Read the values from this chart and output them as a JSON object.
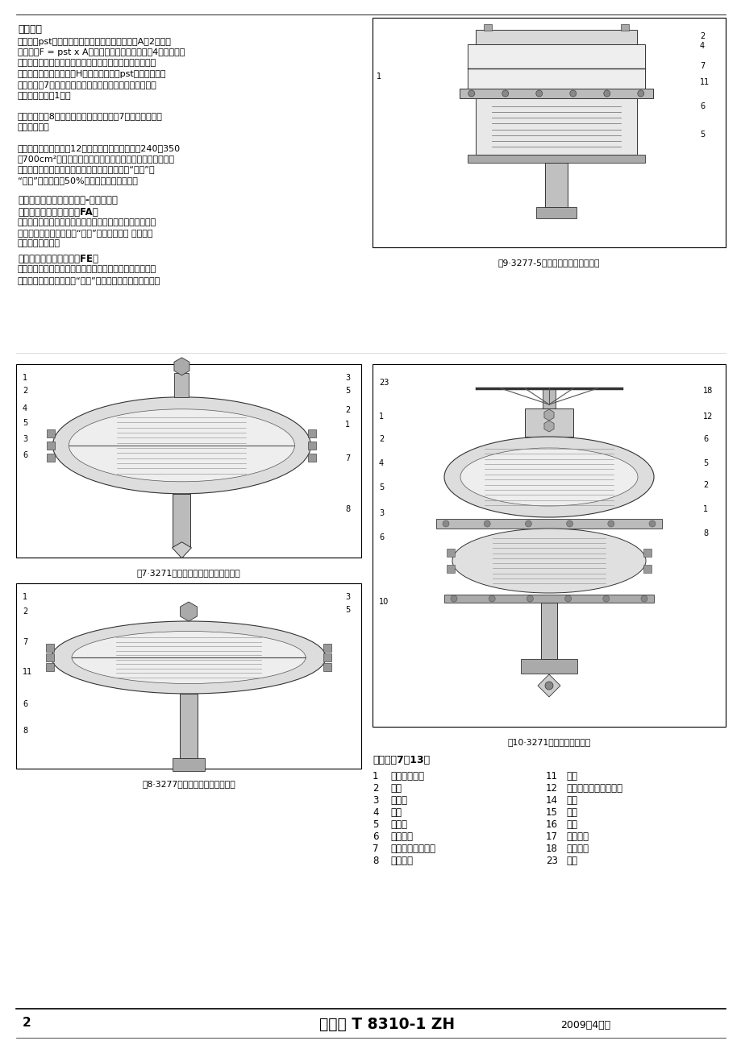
{
  "page_bg": "#ffffff",
  "section1_title": "工作原理",
  "section1_body": [
    "信号压力pst作用在气动执行机构的膜片有效面秭A（2）上，",
    "产生推力F = pst x A。这个力与执行机构弹簧（4）的弹簧力",
    "相平衡。内置弹簧数量及对其预压紧决定着气动执行机构弹",
    "簧范围和额定行程。行程H与所加信号压力pst成正比。执行",
    "机构推杆（7）的动作方向取决于内置弹簧装配位置和信号",
    "压力连接位置（1）。",
    "",
    "用杆连接器（8）可把气动执行机构推杆（7）与控制阀的阀",
    "杆连接起来。",
    "",
    "可调整的机械限位（图12），适用在膜片有效面秭240、350",
    "或700cm²及膜片室为钓板材料的气动执行机构。使用行程限",
    "位，执行机构行程可在两个方向（执行机构推杆“伸出”或",
    "“缩回”）上最大为50%的限制和允许的调整。"
  ],
  "section2_title": "气动执行机构可有下列故障-安全动作：",
  "subsection1_title": "气动执行机构推杆伸出（FA）",
  "subsection1_bold": "气动执行机构推杆伸出（",
  "subsection1_bold2": "FA",
  "subsection1_bold3": "）",
  "subsection1_body": [
    "当作用在膜片上的信号压力减少或气源故障，膜片室内的弹",
    "簧力使气动执行机构推杆“伸出”到最下端位置 （参见剥",
    "面图的右半部）。"
  ],
  "subsection2_title": "气动执行机构推杆缩回（FE）",
  "subsection2_bold": "气动执行机构推杆缩回（",
  "subsection2_bold2": "FE",
  "subsection2_bold3": "）",
  "subsection2_body": [
    "当作用在膜片上的信号压力减少或气源故障，膜片室内的弹",
    "簧力使气动执行机构推杆“缩回”（参见剩面图的左半部）。"
  ],
  "fig7_caption": "图7·3271型（右半部：附加套装弹簧）",
  "fig8_caption": "图8·3277型用于集成直接安装附件",
  "fig9_caption": "图9·3277-5型用于集成直接安装附件",
  "fig10_caption": "图10·3271型带附加顶装手轮",
  "legend_title": "图例（图7至13）",
  "legend_items_left": [
    [
      "1",
      "信号压力接口"
    ],
    [
      "2",
      "膜片"
    ],
    [
      "3",
      "排气孔"
    ],
    [
      "4",
      "弹簧"
    ],
    [
      "5",
      "膜片室"
    ],
    [
      "6",
      "锁紧螺母"
    ],
    [
      "7",
      "气动执行机构推杆"
    ],
    [
      "8",
      "杆连接器"
    ]
  ],
  "legend_items_right": [
    [
      "11",
      "支架"
    ],
    [
      "12",
      "差手轮的执行机构推杆"
    ],
    [
      "14",
      "盖帽"
    ],
    [
      "15",
      "螺母"
    ],
    [
      "16",
      "连杆"
    ],
    [
      "17",
      "止挡轴套"
    ],
    [
      "18",
      "锁紧螺母"
    ],
    [
      "23",
      "手轮"
    ]
  ],
  "footer_page": "2",
  "footer_title": "数据表 T 8310-1 ZH",
  "footer_date": "2009年4月版",
  "text_color": "#000000",
  "line_color": "#000000",
  "box_color": "#000000"
}
